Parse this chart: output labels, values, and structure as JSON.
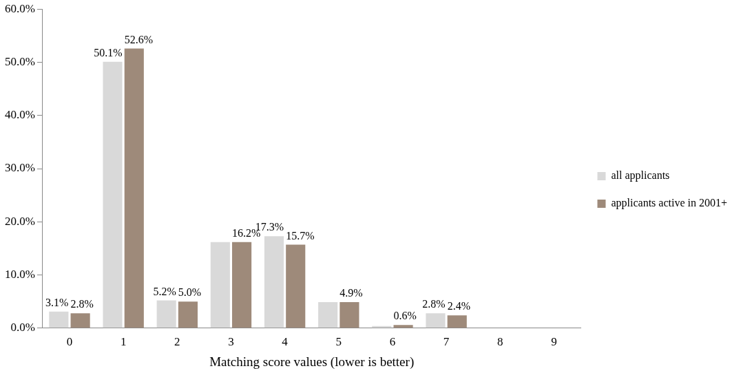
{
  "chart_data": {
    "type": "bar",
    "xlabel": "Matching score values (lower is better)",
    "categories": [
      "0",
      "1",
      "2",
      "3",
      "4",
      "5",
      "6",
      "7",
      "8",
      "9"
    ],
    "series": [
      {
        "name": "all applicants",
        "color": "#d9d9d9",
        "values": [
          3.1,
          50.1,
          5.2,
          16.2,
          17.3,
          4.9,
          0.4,
          2.8,
          null,
          null
        ],
        "value_labels": [
          "3.1%",
          "50.1%",
          "5.2%",
          null,
          "17.3%",
          null,
          null,
          "2.8%",
          null,
          null
        ]
      },
      {
        "name": "applicants active in 2001+",
        "color": "#9e8a7a",
        "values": [
          2.8,
          52.6,
          5.0,
          16.2,
          15.7,
          4.9,
          0.6,
          2.4,
          null,
          null
        ],
        "value_labels": [
          "2.8%",
          "52.6%",
          "5.0%",
          "16.2%",
          "15.7%",
          "4.9%",
          "0.6%",
          "2.4%",
          null,
          null
        ]
      }
    ],
    "ylim": [
      0,
      60
    ],
    "yticks": [
      {
        "value": 0,
        "label": "0.0%"
      },
      {
        "value": 10,
        "label": "10.0%"
      },
      {
        "value": 20,
        "label": "20.0%"
      },
      {
        "value": 30,
        "label": "30.0%"
      },
      {
        "value": 40,
        "label": "40.0%"
      },
      {
        "value": 50,
        "label": "50.0%"
      },
      {
        "value": 60,
        "label": "60.0%"
      }
    ],
    "grid": false,
    "legend": "right"
  }
}
